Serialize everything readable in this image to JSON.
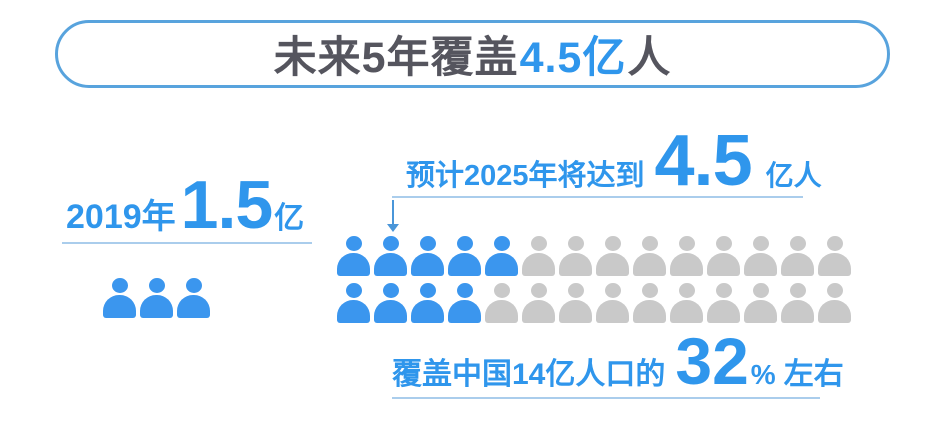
{
  "colors": {
    "blue": "#2f96ec",
    "icon_blue": "#3b96ee",
    "icon_gray": "#c9c9c9",
    "title_dark": "#55555e",
    "pill_border": "#58a3dd",
    "underline": "#aacdec",
    "connector": "#4a96d9",
    "background": "#ffffff"
  },
  "title": {
    "prefix": "未来5年覆盖",
    "highlight": "4.5亿",
    "suffix": "人"
  },
  "stat_2019": {
    "label": "2019年",
    "value": "1.5",
    "unit": "亿",
    "person_icons": 3
  },
  "projection_2025": {
    "label": "预计2025年将达到",
    "value": "4.5",
    "unit": "亿人"
  },
  "pictogram": {
    "rows": 2,
    "columns": 14,
    "highlighted_per_row": [
      5,
      4
    ],
    "total_icons": 28,
    "highlighted_icons": 9
  },
  "coverage_caption": {
    "prefix": "覆盖中国14亿人口的",
    "value": "32",
    "percent": "%",
    "suffix": "左右"
  },
  "chart_data": {
    "type": "pictogram",
    "title": "未来5年覆盖4.5亿人",
    "series": [
      {
        "name": "2019年",
        "value": 1.5,
        "unit": "亿",
        "icons_shown": 3,
        "color": "#3b96ee"
      },
      {
        "name": "预计2025年将达到",
        "value": 4.5,
        "unit": "亿人",
        "icons_total": 28,
        "icons_highlighted": 9,
        "highlight_color": "#3b96ee",
        "rest_color": "#c9c9c9"
      }
    ],
    "annotation": "覆盖中国14亿人口的32%左右",
    "percent_of_population": 32,
    "population_base_label": "中国14亿人口",
    "legend_position": "none",
    "grid": false
  }
}
